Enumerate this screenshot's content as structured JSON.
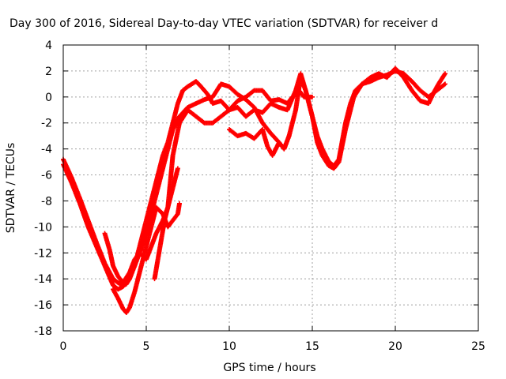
{
  "chart_data": {
    "type": "scatter",
    "title": "Day 300 of 2016, Sidereal Day-to-day VTEC variation (SDTVAR) for receiver d",
    "xlabel": "GPS time / hours",
    "ylabel": "SDTVAR / TECUs",
    "xlim": [
      0,
      25
    ],
    "ylim": [
      -18,
      4
    ],
    "xticks": [
      0,
      5,
      10,
      15,
      20,
      25
    ],
    "yticks": [
      -18,
      -16,
      -14,
      -12,
      -10,
      -8,
      -6,
      -4,
      -2,
      0,
      2,
      4
    ],
    "grid": true,
    "legend": "none",
    "marker": "plus",
    "color": "#ff0000",
    "series": [
      {
        "x": [
          0,
          0.5,
          1.0,
          1.5,
          2.0,
          2.5,
          3.0,
          3.3,
          3.6,
          3.8,
          4.0,
          4.3,
          4.6,
          5.0,
          5.3,
          5.6,
          6.0,
          6.3,
          6.6,
          6.9,
          7.2,
          7.5,
          8.0,
          8.3,
          8.7,
          9.0,
          9.5,
          10.0,
          10.5,
          11.0,
          11.5,
          12.0,
          12.5,
          13.0,
          13.5,
          14.0,
          14.3,
          14.6,
          15.0,
          15.3,
          15.6,
          16.0,
          16.3,
          16.6,
          17.0,
          17.3,
          17.6,
          18.0,
          18.5,
          19.0,
          19.5,
          20.0,
          20.5,
          21.0,
          21.5,
          22.0,
          22.5,
          23.0
        ],
        "y": [
          -4.8,
          -6.2,
          -7.8,
          -9.5,
          -11.2,
          -12.8,
          -14.0,
          -14.3,
          -14.5,
          -14.4,
          -14.0,
          -13.0,
          -11.5,
          -9.5,
          -8.0,
          -6.5,
          -4.5,
          -3.5,
          -2.0,
          -0.5,
          0.5,
          0.8,
          1.2,
          0.8,
          0.2,
          -0.5,
          -0.3,
          -1.0,
          -0.8,
          -1.5,
          -1.0,
          -1.2,
          -0.5,
          -0.8,
          -1.0,
          0.5,
          1.8,
          0.5,
          -1.5,
          -3.0,
          -4.0,
          -5.0,
          -5.3,
          -4.8,
          -2.0,
          -0.5,
          0.5,
          1.0,
          1.2,
          1.5,
          1.7,
          2.0,
          1.8,
          1.2,
          0.5,
          0.0,
          0.5,
          1.0
        ]
      },
      {
        "x": [
          0,
          0.5,
          1.0,
          1.5,
          2.0,
          2.5,
          3.0,
          3.3,
          3.6,
          3.8,
          4.0,
          4.3,
          4.6,
          5.0,
          5.3,
          5.6,
          6.0,
          6.3,
          6.6,
          7.0,
          7.5,
          8.0,
          8.5,
          9.0,
          9.5,
          10.0,
          10.5,
          11.0,
          11.5,
          12.0,
          12.5,
          13.0,
          13.3,
          13.6,
          14.0,
          14.3,
          14.6,
          15.0,
          15.3,
          15.6,
          16.0,
          16.3,
          16.6,
          17.0,
          17.5,
          18.0,
          18.5,
          19.0,
          19.5,
          20.0,
          20.5,
          21.0,
          21.5,
          22.0,
          22.3,
          22.6,
          23.0
        ],
        "y": [
          -5.2,
          -6.6,
          -8.2,
          -10.0,
          -11.5,
          -13.0,
          -14.5,
          -14.8,
          -14.6,
          -14.2,
          -13.8,
          -13.0,
          -12.0,
          -10.5,
          -9.0,
          -7.5,
          -5.5,
          -4.0,
          -2.5,
          -1.5,
          -0.8,
          -0.5,
          -0.2,
          0.0,
          1.0,
          0.8,
          0.2,
          -0.2,
          -0.8,
          -2.0,
          -2.8,
          -3.5,
          -4.0,
          -3.0,
          -1.0,
          1.5,
          0.5,
          -1.5,
          -3.5,
          -4.5,
          -5.3,
          -5.5,
          -5.0,
          -2.5,
          0.0,
          1.0,
          1.5,
          1.8,
          1.5,
          2.2,
          1.5,
          0.5,
          -0.3,
          -0.5,
          0.3,
          1.0,
          1.8
        ]
      },
      {
        "x": [
          2.5,
          2.8,
          3.0,
          3.3,
          3.6,
          4.0,
          4.3,
          4.6,
          5.0,
          5.3,
          5.6,
          6.0,
          6.3,
          6.6,
          7.0,
          7.5,
          8.0,
          8.5,
          9.0,
          9.5,
          10.0,
          10.5,
          11.0,
          11.5,
          12.0,
          12.5,
          13.0,
          13.5,
          13.8,
          14.2,
          14.5,
          15.0
        ],
        "y": [
          -10.5,
          -11.8,
          -13.0,
          -13.8,
          -14.3,
          -13.5,
          -12.5,
          -12.0,
          -12.5,
          -11.5,
          -10.5,
          -9.5,
          -8.5,
          -4.5,
          -2.0,
          -1.0,
          -1.5,
          -2.0,
          -2.0,
          -1.5,
          -1.0,
          -0.3,
          0.0,
          0.5,
          0.5,
          -0.3,
          -0.2,
          -0.5,
          0.0,
          0.5,
          0.0,
          0.0
        ]
      },
      {
        "x": [
          3.0,
          3.3,
          3.6,
          3.8,
          4.0,
          4.3,
          4.6,
          5.0,
          5.3,
          5.6,
          6.0,
          6.3,
          6.6,
          6.9,
          7.0
        ],
        "y": [
          -14.8,
          -15.5,
          -16.3,
          -16.6,
          -16.2,
          -15.0,
          -13.5,
          -11.5,
          -10.0,
          -8.5,
          -9.0,
          -10.0,
          -9.5,
          -9.0,
          -8.2
        ]
      },
      {
        "x": [
          5.5,
          5.7,
          5.9,
          6.1,
          6.3,
          6.5,
          6.7,
          6.9
        ],
        "y": [
          -14.0,
          -12.5,
          -11.0,
          -9.5,
          -8.5,
          -7.5,
          -6.5,
          -5.5
        ]
      },
      {
        "x": [
          10.0,
          10.5,
          11.0,
          11.5,
          12.0,
          12.3,
          12.6,
          13.0,
          13.3,
          13.6
        ],
        "y": [
          -2.5,
          -3.0,
          -2.8,
          -3.2,
          -2.5,
          -3.8,
          -4.5,
          -3.5,
          -4.0,
          -3.0
        ]
      }
    ]
  }
}
